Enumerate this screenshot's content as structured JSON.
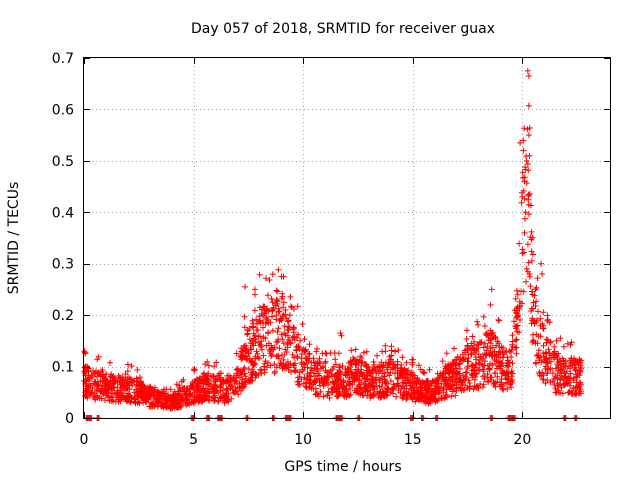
{
  "chart_data": {
    "type": "scatter",
    "title": "Day 057 of 2018, SRMTID for receiver guax",
    "xlabel": "GPS time / hours",
    "ylabel": "SRMTID / TECUs",
    "xlim": [
      0,
      24
    ],
    "ylim": [
      0,
      0.7
    ],
    "xticks": [
      0,
      5,
      10,
      15,
      20
    ],
    "xtick_labels": [
      "0",
      "5",
      "10",
      "15",
      "20"
    ],
    "yticks": [
      0,
      0.1,
      0.2,
      0.3,
      0.4,
      0.5,
      0.6,
      0.7
    ],
    "ytick_labels": [
      "0",
      "0.1",
      "0.2",
      "0.3",
      "0.4",
      "0.5",
      "0.6",
      "0.7"
    ],
    "grid": true,
    "marker": "+",
    "color": "#ff0000",
    "series_profile": [
      {
        "x": 0.0,
        "y": 0.07
      },
      {
        "x": 0.5,
        "y": 0.065
      },
      {
        "x": 1.0,
        "y": 0.06
      },
      {
        "x": 1.5,
        "y": 0.055
      },
      {
        "x": 2.0,
        "y": 0.055
      },
      {
        "x": 2.5,
        "y": 0.05
      },
      {
        "x": 3.0,
        "y": 0.04
      },
      {
        "x": 3.5,
        "y": 0.035
      },
      {
        "x": 4.0,
        "y": 0.03
      },
      {
        "x": 4.5,
        "y": 0.04
      },
      {
        "x": 5.0,
        "y": 0.05
      },
      {
        "x": 5.5,
        "y": 0.06
      },
      {
        "x": 6.0,
        "y": 0.06
      },
      {
        "x": 6.5,
        "y": 0.05
      },
      {
        "x": 7.0,
        "y": 0.08
      },
      {
        "x": 7.5,
        "y": 0.12
      },
      {
        "x": 8.0,
        "y": 0.15
      },
      {
        "x": 8.5,
        "y": 0.15
      },
      {
        "x": 9.0,
        "y": 0.17
      },
      {
        "x": 9.5,
        "y": 0.13
      },
      {
        "x": 10.0,
        "y": 0.1
      },
      {
        "x": 10.5,
        "y": 0.08
      },
      {
        "x": 11.0,
        "y": 0.07
      },
      {
        "x": 11.5,
        "y": 0.07
      },
      {
        "x": 12.0,
        "y": 0.075
      },
      {
        "x": 12.5,
        "y": 0.08
      },
      {
        "x": 13.0,
        "y": 0.07
      },
      {
        "x": 13.5,
        "y": 0.07
      },
      {
        "x": 14.0,
        "y": 0.08
      },
      {
        "x": 14.5,
        "y": 0.07
      },
      {
        "x": 15.0,
        "y": 0.06
      },
      {
        "x": 15.5,
        "y": 0.05
      },
      {
        "x": 16.0,
        "y": 0.05
      },
      {
        "x": 16.5,
        "y": 0.07
      },
      {
        "x": 17.0,
        "y": 0.08
      },
      {
        "x": 17.5,
        "y": 0.1
      },
      {
        "x": 18.0,
        "y": 0.1
      },
      {
        "x": 18.5,
        "y": 0.12
      },
      {
        "x": 19.0,
        "y": 0.1
      },
      {
        "x": 19.5,
        "y": 0.09
      },
      {
        "x": 19.8,
        "y": 0.2
      },
      {
        "x": 20.0,
        "y": 0.38
      },
      {
        "x": 20.2,
        "y": 0.45
      },
      {
        "x": 20.4,
        "y": 0.3
      },
      {
        "x": 20.6,
        "y": 0.16
      },
      {
        "x": 21.0,
        "y": 0.12
      },
      {
        "x": 21.5,
        "y": 0.09
      },
      {
        "x": 22.0,
        "y": 0.08
      },
      {
        "x": 22.7,
        "y": 0.08
      }
    ],
    "highlights": [
      {
        "x": 20.25,
        "y": 0.675
      },
      {
        "x": 20.3,
        "y": 0.665
      },
      {
        "x": 20.3,
        "y": 0.607
      },
      {
        "x": 20.3,
        "y": 0.55
      },
      {
        "x": 19.9,
        "y": 0.535
      },
      {
        "x": 20.05,
        "y": 0.52
      },
      {
        "x": 20.2,
        "y": 0.5
      },
      {
        "x": 20.1,
        "y": 0.46
      },
      {
        "x": 20.0,
        "y": 0.43
      },
      {
        "x": 20.15,
        "y": 0.4
      },
      {
        "x": 20.1,
        "y": 0.36
      },
      {
        "x": 20.0,
        "y": 0.32
      },
      {
        "x": 20.2,
        "y": 0.29
      },
      {
        "x": 20.85,
        "y": 0.3
      },
      {
        "x": 20.9,
        "y": 0.28
      },
      {
        "x": 20.6,
        "y": 0.25
      },
      {
        "x": 18.6,
        "y": 0.25
      },
      {
        "x": 18.55,
        "y": 0.22
      },
      {
        "x": 7.35,
        "y": 0.255
      },
      {
        "x": 8.55,
        "y": 0.232
      },
      {
        "x": 8.6,
        "y": 0.225
      },
      {
        "x": 7.8,
        "y": 0.24
      },
      {
        "x": 9.2,
        "y": 0.21
      },
      {
        "x": 11.7,
        "y": 0.165
      },
      {
        "x": 11.75,
        "y": 0.16
      }
    ],
    "zero_segments": [
      [
        0.1,
        0.35
      ],
      [
        0.6,
        0.7
      ],
      [
        4.9,
        5.05
      ],
      [
        5.6,
        5.75
      ],
      [
        6.1,
        6.3
      ],
      [
        7.4,
        7.5
      ],
      [
        8.6,
        8.7
      ],
      [
        9.2,
        9.45
      ],
      [
        11.5,
        11.8
      ],
      [
        12.5,
        12.6
      ],
      [
        14.9,
        15.05
      ],
      [
        15.4,
        15.5
      ],
      [
        16.05,
        16.15
      ],
      [
        18.55,
        18.65
      ],
      [
        19.35,
        19.7
      ],
      [
        21.9,
        22.0
      ],
      [
        22.4,
        22.5
      ]
    ],
    "samples_per_hour": 112
  }
}
